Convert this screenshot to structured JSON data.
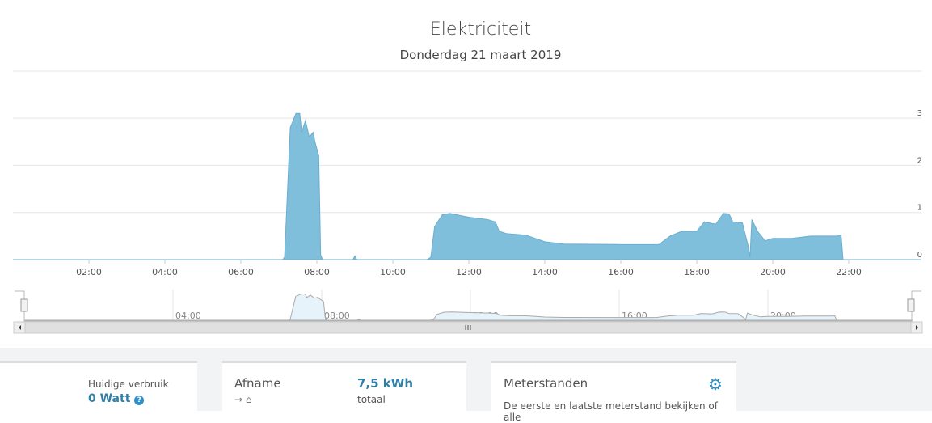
{
  "chart_data": {
    "type": "area",
    "title": "Elektriciteit",
    "subtitle": "Donderdag 21 maart 2019",
    "xlim": [
      0,
      23.9
    ],
    "ylim": [
      0,
      3.3
    ],
    "x_ticks": [
      "02:00",
      "04:00",
      "06:00",
      "08:00",
      "10:00",
      "12:00",
      "14:00",
      "16:00",
      "18:00",
      "20:00",
      "22:00"
    ],
    "y_ticks": [
      "0",
      "1",
      "2",
      "3"
    ],
    "navigator_ticks": [
      "04:00",
      "08:00",
      "12:00",
      "16:00",
      "20:00"
    ],
    "grid": true,
    "color": "#7fbfdc",
    "x": [
      0,
      7.1,
      7.15,
      7.3,
      7.45,
      7.55,
      7.6,
      7.7,
      7.8,
      7.9,
      7.95,
      8.05,
      8.1,
      8.15,
      8.95,
      9.0,
      9.05,
      10.9,
      11.0,
      11.1,
      11.3,
      11.5,
      12.0,
      12.5,
      12.7,
      12.8,
      13.0,
      13.5,
      14.0,
      14.5,
      16.0,
      17.0,
      17.3,
      17.6,
      18.0,
      18.2,
      18.5,
      18.7,
      18.85,
      18.95,
      19.2,
      19.35,
      19.4,
      19.45,
      19.6,
      19.8,
      20.0,
      20.5,
      21.0,
      21.7,
      21.8,
      21.85,
      23.9
    ],
    "y": [
      0,
      0,
      0.05,
      2.8,
      3.1,
      3.1,
      2.7,
      2.95,
      2.6,
      2.7,
      2.5,
      2.2,
      0.1,
      0,
      0,
      0.08,
      0,
      0,
      0.05,
      0.7,
      0.95,
      0.98,
      0.9,
      0.85,
      0.8,
      0.6,
      0.55,
      0.52,
      0.38,
      0.33,
      0.32,
      0.32,
      0.5,
      0.6,
      0.6,
      0.8,
      0.75,
      0.98,
      0.97,
      0.8,
      0.78,
      0.3,
      0.05,
      0.85,
      0.6,
      0.4,
      0.45,
      0.45,
      0.5,
      0.5,
      0.52,
      0,
      0
    ]
  },
  "cards": {
    "current_label": "Huidige verbruik",
    "current_value": "0 Watt",
    "afname_title": "Afname",
    "afname_value": "7,5 kWh",
    "afname_sub": "totaal",
    "afname_arrow": "→ ⌂",
    "meter_title": "Meterstanden",
    "meter_text": "De eerste en laatste meterstand bekijken of alle"
  }
}
